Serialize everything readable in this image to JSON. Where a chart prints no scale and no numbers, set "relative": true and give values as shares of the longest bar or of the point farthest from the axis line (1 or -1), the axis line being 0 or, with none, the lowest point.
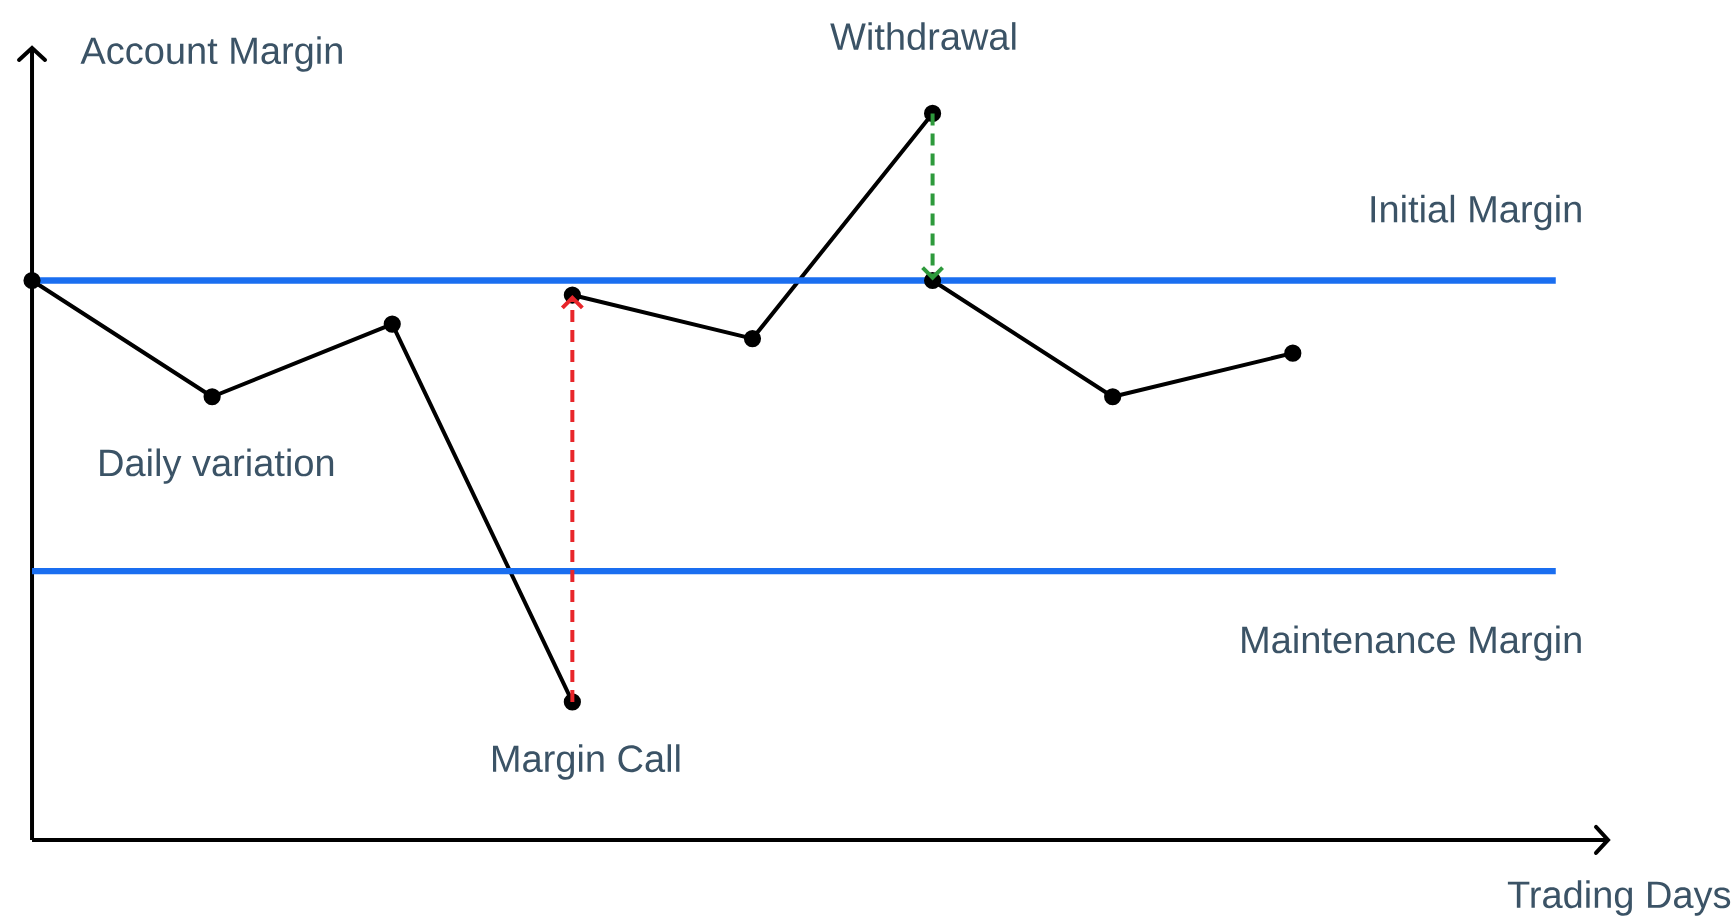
{
  "chart_data": {
    "type": "line",
    "xlabel": "Trading Days",
    "ylabel": "Account Margin",
    "relative": true,
    "marker": "circle",
    "categories": [
      null,
      null,
      null,
      null,
      null,
      null,
      null,
      null
    ],
    "series": [
      {
        "color": "#000000",
        "values": [
          0.77,
          0.61,
          0.71,
          0.19,
          null,
          null,
          null,
          null
        ]
      },
      {
        "color": "#000000",
        "values": [
          null,
          null,
          null,
          0.75,
          0.69,
          1,
          null,
          null
        ]
      },
      {
        "color": "#000000",
        "values": [
          null,
          null,
          null,
          null,
          null,
          0.77,
          0.61,
          0.67
        ]
      }
    ],
    "ref_lines": [
      {
        "axis": "y",
        "value": 0.77,
        "label": "Initial Margin",
        "color": "#1a6ef0"
      },
      {
        "axis": "y",
        "value": 0.37,
        "label": "Maintenance Margin",
        "color": "#1a6ef0"
      }
    ],
    "annotations": [
      "Daily variation",
      "Margin Call",
      "Withdrawal"
    ]
  }
}
